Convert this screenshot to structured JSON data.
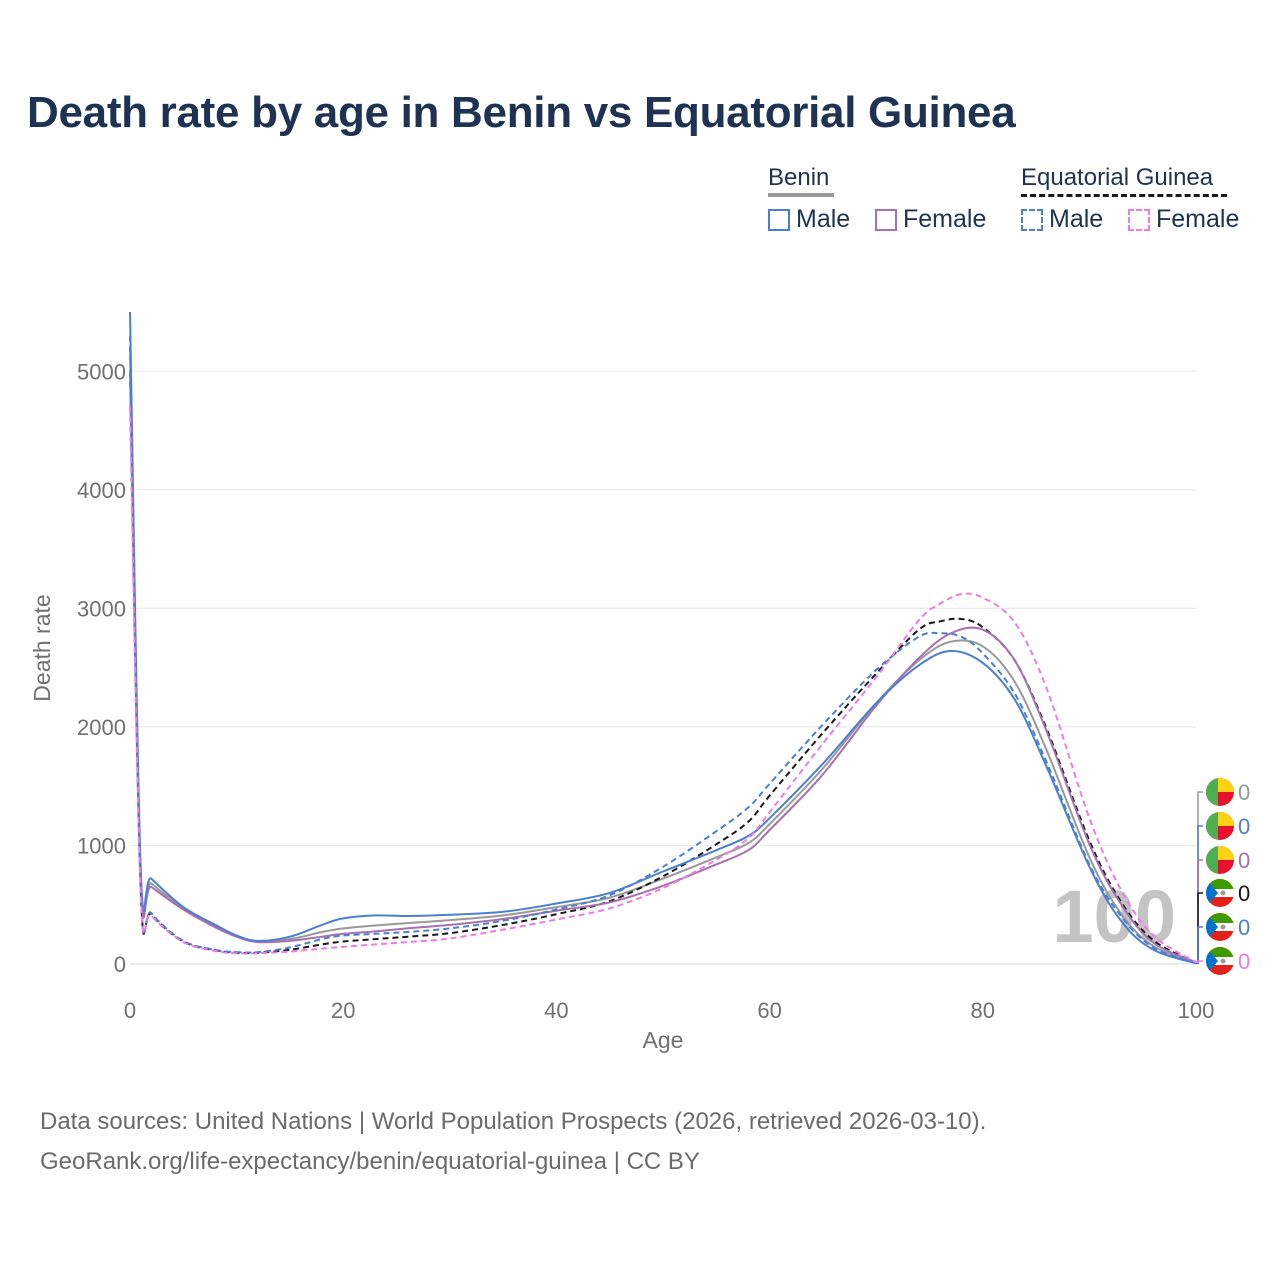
{
  "chart_data": {
    "type": "line",
    "title": "Death rate by age in Benin vs Equatorial Guinea",
    "xlabel": "Age",
    "ylabel": "Death rate",
    "xlim": [
      0,
      100
    ],
    "ylim": [
      0,
      5500
    ],
    "xticks": [
      0,
      20,
      40,
      60,
      80,
      100
    ],
    "yticks": [
      0,
      1000,
      2000,
      3000,
      4000,
      5000
    ],
    "grid": true,
    "legend": {
      "position": "top-right",
      "groups": [
        {
          "title": "Benin",
          "items": [
            "Male",
            "Female"
          ]
        },
        {
          "title": "Equatorial Guinea",
          "items": [
            "Male",
            "Female"
          ]
        }
      ]
    },
    "frame_label": "100",
    "series": [
      {
        "name": "Benin Total",
        "color": "#999999",
        "dash": false,
        "end_value": "0",
        "x": [
          0,
          1,
          2,
          5,
          8,
          10,
          12,
          15,
          18,
          20,
          23,
          26,
          30,
          35,
          40,
          45,
          50,
          55,
          58,
          60,
          65,
          70,
          74,
          77,
          80,
          83,
          86,
          90,
          93,
          96,
          100
        ],
        "y": [
          5200,
          760,
          680,
          470,
          320,
          235,
          190,
          210,
          270,
          300,
          325,
          345,
          370,
          410,
          480,
          560,
          720,
          900,
          1020,
          1180,
          1650,
          2200,
          2560,
          2720,
          2680,
          2380,
          1800,
          900,
          420,
          150,
          10
        ]
      },
      {
        "name": "Benin Male",
        "color": "#4a7fd4",
        "dash": false,
        "end_value": "0",
        "x": [
          0,
          1,
          2,
          5,
          8,
          10,
          12,
          15,
          18,
          20,
          23,
          26,
          30,
          35,
          40,
          45,
          50,
          55,
          58,
          60,
          65,
          70,
          74,
          77,
          80,
          83,
          86,
          90,
          93,
          96,
          100
        ],
        "y": [
          5500,
          810,
          720,
          480,
          330,
          240,
          195,
          230,
          330,
          385,
          410,
          405,
          415,
          440,
          510,
          600,
          780,
          960,
          1080,
          1230,
          1690,
          2200,
          2520,
          2640,
          2540,
          2230,
          1660,
          820,
          360,
          120,
          5
        ]
      },
      {
        "name": "Benin Female",
        "color": "#a870b0",
        "dash": false,
        "end_value": "0",
        "x": [
          0,
          1,
          2,
          5,
          8,
          10,
          12,
          15,
          18,
          20,
          23,
          26,
          30,
          35,
          40,
          45,
          50,
          55,
          58,
          60,
          65,
          70,
          74,
          77,
          80,
          83,
          86,
          90,
          93,
          96,
          100
        ],
        "y": [
          5000,
          720,
          650,
          460,
          310,
          230,
          185,
          195,
          230,
          255,
          275,
          300,
          330,
          380,
          450,
          520,
          660,
          840,
          960,
          1130,
          1600,
          2180,
          2580,
          2790,
          2820,
          2560,
          1960,
          1010,
          500,
          180,
          15
        ]
      },
      {
        "name": "Equatorial Guinea Total",
        "color": "#1a1a1a",
        "dash": true,
        "end_value": "0",
        "x": [
          0,
          1,
          2,
          5,
          8,
          10,
          12,
          15,
          18,
          20,
          23,
          26,
          30,
          35,
          40,
          45,
          50,
          55,
          58,
          60,
          65,
          70,
          74,
          76,
          78,
          80,
          83,
          86,
          90,
          93,
          96,
          100
        ],
        "y": [
          5000,
          640,
          420,
          190,
          115,
          95,
          95,
          120,
          165,
          190,
          210,
          230,
          260,
          330,
          420,
          530,
          740,
          1010,
          1200,
          1420,
          1950,
          2450,
          2820,
          2890,
          2910,
          2840,
          2560,
          1980,
          1040,
          520,
          200,
          10
        ]
      },
      {
        "name": "Equatorial Guinea Male",
        "color": "#4a7fd4",
        "dash": true,
        "end_value": "0",
        "x": [
          0,
          1,
          2,
          5,
          8,
          10,
          12,
          15,
          18,
          20,
          23,
          26,
          30,
          35,
          40,
          45,
          50,
          55,
          58,
          60,
          65,
          70,
          74,
          76,
          78,
          80,
          83,
          86,
          90,
          93,
          96,
          100
        ],
        "y": [
          5300,
          660,
          430,
          195,
          120,
          100,
          100,
          140,
          210,
          240,
          255,
          270,
          300,
          365,
          460,
          580,
          820,
          1120,
          1320,
          1520,
          2020,
          2480,
          2760,
          2790,
          2760,
          2620,
          2280,
          1700,
          840,
          400,
          140,
          5
        ]
      },
      {
        "name": "Equatorial Guinea Female",
        "color": "#f07be8",
        "dash": true,
        "end_value": "0",
        "x": [
          0,
          1,
          2,
          5,
          8,
          10,
          12,
          15,
          18,
          20,
          23,
          26,
          30,
          35,
          40,
          45,
          50,
          55,
          58,
          60,
          65,
          70,
          74,
          76,
          78,
          80,
          83,
          86,
          90,
          93,
          96,
          100
        ],
        "y": [
          4700,
          620,
          410,
          185,
          110,
          90,
          90,
          105,
          130,
          145,
          165,
          185,
          215,
          290,
          375,
          470,
          640,
          880,
          1060,
          1280,
          1860,
          2420,
          2900,
          3040,
          3120,
          3090,
          2880,
          2320,
          1230,
          620,
          240,
          15
        ]
      }
    ]
  },
  "footer": {
    "line1": "Data sources: United Nations | World Population Prospects (2026, retrieved 2026-03-10).",
    "line2": "GeoRank.org/life-expectancy/benin/equatorial-guinea | CC BY"
  }
}
